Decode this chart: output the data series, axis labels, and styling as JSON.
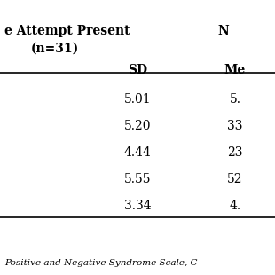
{
  "header_row1_col1": "e Attempt Present",
  "header_row1_col2": "N",
  "header_row2_col1": "(n=31)",
  "col_headers": [
    "",
    "SD",
    "Me"
  ],
  "rows": [
    [
      "",
      "5.01",
      "5."
    ],
    [
      "",
      "5.20",
      "33"
    ],
    [
      "",
      "4.44",
      "23"
    ],
    [
      "",
      "5.55",
      "52"
    ],
    [
      "",
      "3.34",
      "4."
    ]
  ],
  "footer": "Positive and Negative Syndrome Scale, C",
  "bg_color": "#ffffff",
  "text_color": "#000000",
  "font_size": 9,
  "header_font_size": 10
}
